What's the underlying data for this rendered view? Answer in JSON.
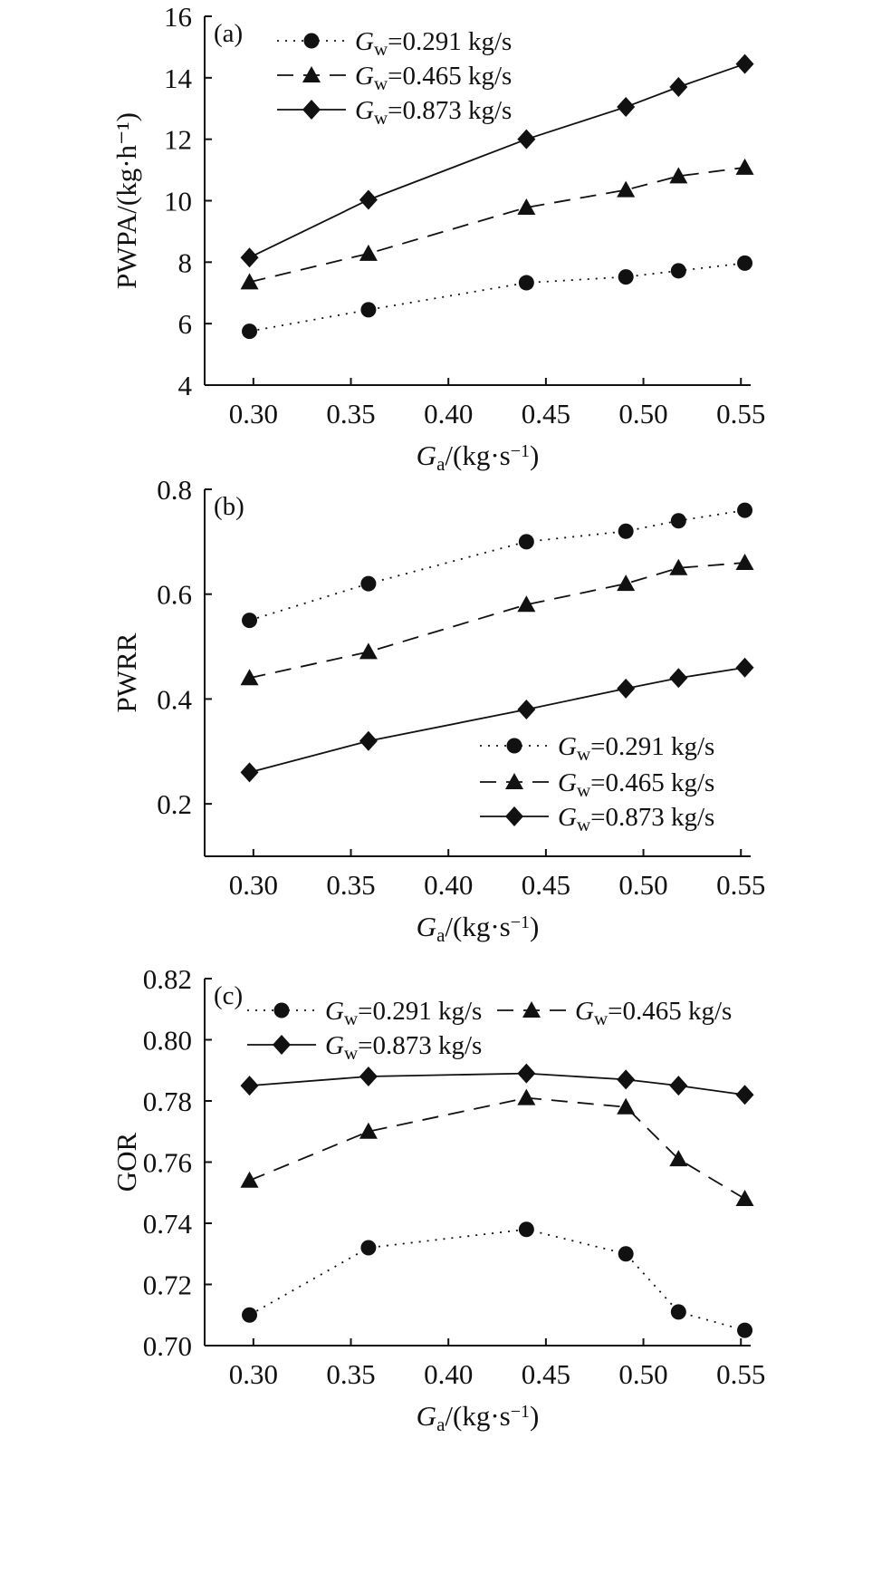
{
  "chart_data": [
    {
      "type": "line",
      "panel_label": "(a)",
      "xlabel": {
        "main": "G",
        "sub": "a",
        "rest": "/(kg·s",
        "sup": "−1",
        "close": ")"
      },
      "ylabel": "PWPA/(kg·h⁻¹)",
      "xlim": [
        0.275,
        0.555
      ],
      "ylim": [
        4,
        16
      ],
      "xticks": [
        0.3,
        0.35,
        0.4,
        0.45,
        0.5,
        0.55
      ],
      "xtick_labels": [
        "0.30",
        "0.35",
        "0.40",
        "0.45",
        "0.50",
        "0.55"
      ],
      "yticks": [
        4,
        6,
        8,
        10,
        12,
        14,
        16
      ],
      "ytick_labels": [
        "4",
        "6",
        "8",
        "10",
        "12",
        "14",
        "16"
      ],
      "legend_placement": "top-left",
      "x": [
        0.298,
        0.359,
        0.44,
        0.491,
        0.518,
        0.552
      ],
      "series": [
        {
          "name": {
            "main": "G",
            "sub": "w",
            "rest": "=0.291 kg/s"
          },
          "marker": "circle",
          "dash": "dotted",
          "values": [
            5.75,
            6.45,
            7.33,
            7.52,
            7.72,
            7.97
          ]
        },
        {
          "name": {
            "main": "G",
            "sub": "w",
            "rest": "=0.465 kg/s"
          },
          "marker": "triangle",
          "dash": "dashed",
          "values": [
            7.35,
            8.28,
            9.78,
            10.35,
            10.8,
            11.08
          ]
        },
        {
          "name": {
            "main": "G",
            "sub": "w",
            "rest": "=0.873 kg/s"
          },
          "marker": "diamond",
          "dash": "solid",
          "values": [
            8.15,
            10.03,
            12.0,
            13.05,
            13.7,
            14.45
          ]
        }
      ]
    },
    {
      "type": "line",
      "panel_label": "(b)",
      "xlabel": {
        "main": "G",
        "sub": "a",
        "rest": "/(kg·s",
        "sup": "−1",
        "close": ")"
      },
      "ylabel": "PWRR",
      "xlim": [
        0.275,
        0.555
      ],
      "ylim": [
        0.1,
        0.8
      ],
      "xticks": [
        0.3,
        0.35,
        0.4,
        0.45,
        0.5,
        0.55
      ],
      "xtick_labels": [
        "0.30",
        "0.35",
        "0.40",
        "0.45",
        "0.50",
        "0.55"
      ],
      "yticks": [
        0.2,
        0.4,
        0.6,
        0.8
      ],
      "ytick_labels": [
        "0.2",
        "0.4",
        "0.6",
        "0.8"
      ],
      "legend_placement": "bottom-right",
      "x": [
        0.298,
        0.359,
        0.44,
        0.491,
        0.518,
        0.552
      ],
      "series": [
        {
          "name": {
            "main": "G",
            "sub": "w",
            "rest": "=0.291 kg/s"
          },
          "marker": "circle",
          "dash": "dotted",
          "values": [
            0.55,
            0.62,
            0.7,
            0.72,
            0.74,
            0.76
          ]
        },
        {
          "name": {
            "main": "G",
            "sub": "w",
            "rest": "=0.465 kg/s"
          },
          "marker": "triangle",
          "dash": "dashed",
          "values": [
            0.44,
            0.49,
            0.58,
            0.62,
            0.65,
            0.66
          ]
        },
        {
          "name": {
            "main": "G",
            "sub": "w",
            "rest": "=0.873 kg/s"
          },
          "marker": "diamond",
          "dash": "solid",
          "values": [
            0.26,
            0.32,
            0.38,
            0.42,
            0.44,
            0.46
          ]
        }
      ]
    },
    {
      "type": "line",
      "panel_label": "(c)",
      "xlabel": {
        "main": "G",
        "sub": "a",
        "rest": "/(kg·s",
        "sup": "−1",
        "close": ")"
      },
      "ylabel": "GOR",
      "xlim": [
        0.275,
        0.555
      ],
      "ylim": [
        0.7,
        0.82
      ],
      "xticks": [
        0.3,
        0.35,
        0.4,
        0.45,
        0.5,
        0.55
      ],
      "xtick_labels": [
        "0.30",
        "0.35",
        "0.40",
        "0.45",
        "0.50",
        "0.55"
      ],
      "yticks": [
        0.7,
        0.72,
        0.74,
        0.76,
        0.78,
        0.8,
        0.82
      ],
      "ytick_labels": [
        "0.70",
        "0.72",
        "0.74",
        "0.76",
        "0.78",
        "0.80",
        "0.82"
      ],
      "legend_placement": "top",
      "x": [
        0.298,
        0.359,
        0.44,
        0.491,
        0.518,
        0.552
      ],
      "series": [
        {
          "name": {
            "main": "G",
            "sub": "w",
            "rest": "=0.291 kg/s"
          },
          "marker": "circle",
          "dash": "dotted",
          "values": [
            0.71,
            0.732,
            0.738,
            0.73,
            0.711,
            0.705
          ]
        },
        {
          "name": {
            "main": "G",
            "sub": "w",
            "rest": "=0.465 kg/s"
          },
          "marker": "triangle",
          "dash": "dashed",
          "values": [
            0.754,
            0.77,
            0.781,
            0.778,
            0.761,
            0.748
          ]
        },
        {
          "name": {
            "main": "G",
            "sub": "w",
            "rest": "=0.873 kg/s"
          },
          "marker": "diamond",
          "dash": "solid",
          "values": [
            0.785,
            0.788,
            0.789,
            0.787,
            0.785,
            0.782
          ]
        }
      ]
    }
  ]
}
